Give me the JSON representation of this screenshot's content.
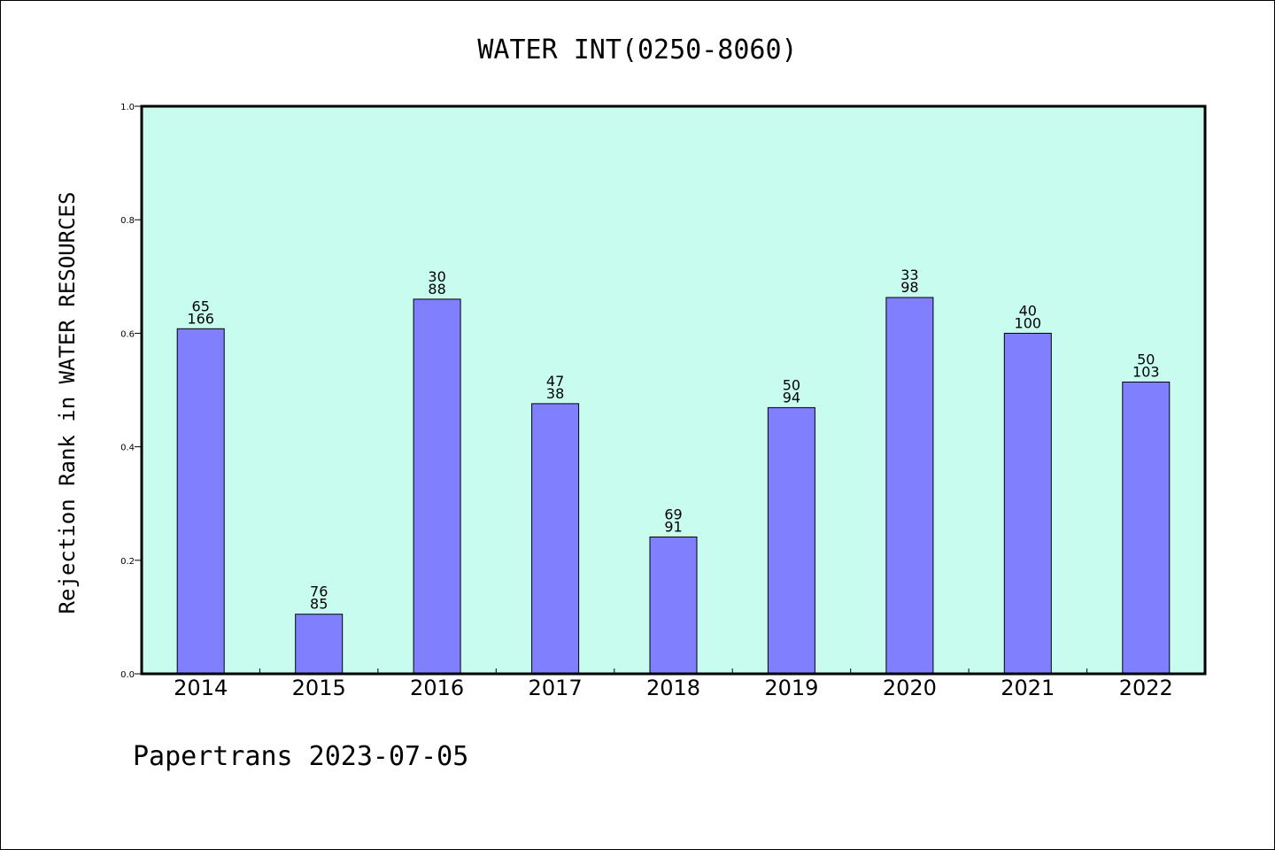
{
  "chart_data": {
    "type": "bar",
    "title": "WATER INT(0250-8060)",
    "ylabel": "Rejection Rank in WATER RESOURCES",
    "xlabel": "",
    "ylim": [
      0,
      1.0
    ],
    "yticks": [
      "0.0",
      "0.2",
      "0.4",
      "0.6",
      "0.8",
      "1.0"
    ],
    "categories": [
      "2014",
      "2015",
      "2016",
      "2017",
      "2018",
      "2019",
      "2020",
      "2021",
      "2022"
    ],
    "values": [
      0.608,
      0.105,
      0.66,
      0.476,
      0.241,
      0.469,
      0.663,
      0.6,
      0.514
    ],
    "labels_top": [
      "65",
      "76",
      "30",
      "47",
      "69",
      "50",
      "33",
      "40",
      "50"
    ],
    "labels_bottom": [
      "166",
      "85",
      "88",
      "38",
      "91",
      "94",
      "98",
      "100",
      "103"
    ],
    "colors": {
      "plot_background": "#c8fcee",
      "bar": "#8080ff",
      "bar_edge": "#000000"
    },
    "grid": false,
    "legend": "none"
  },
  "footer": "Papertrans 2023-07-05"
}
